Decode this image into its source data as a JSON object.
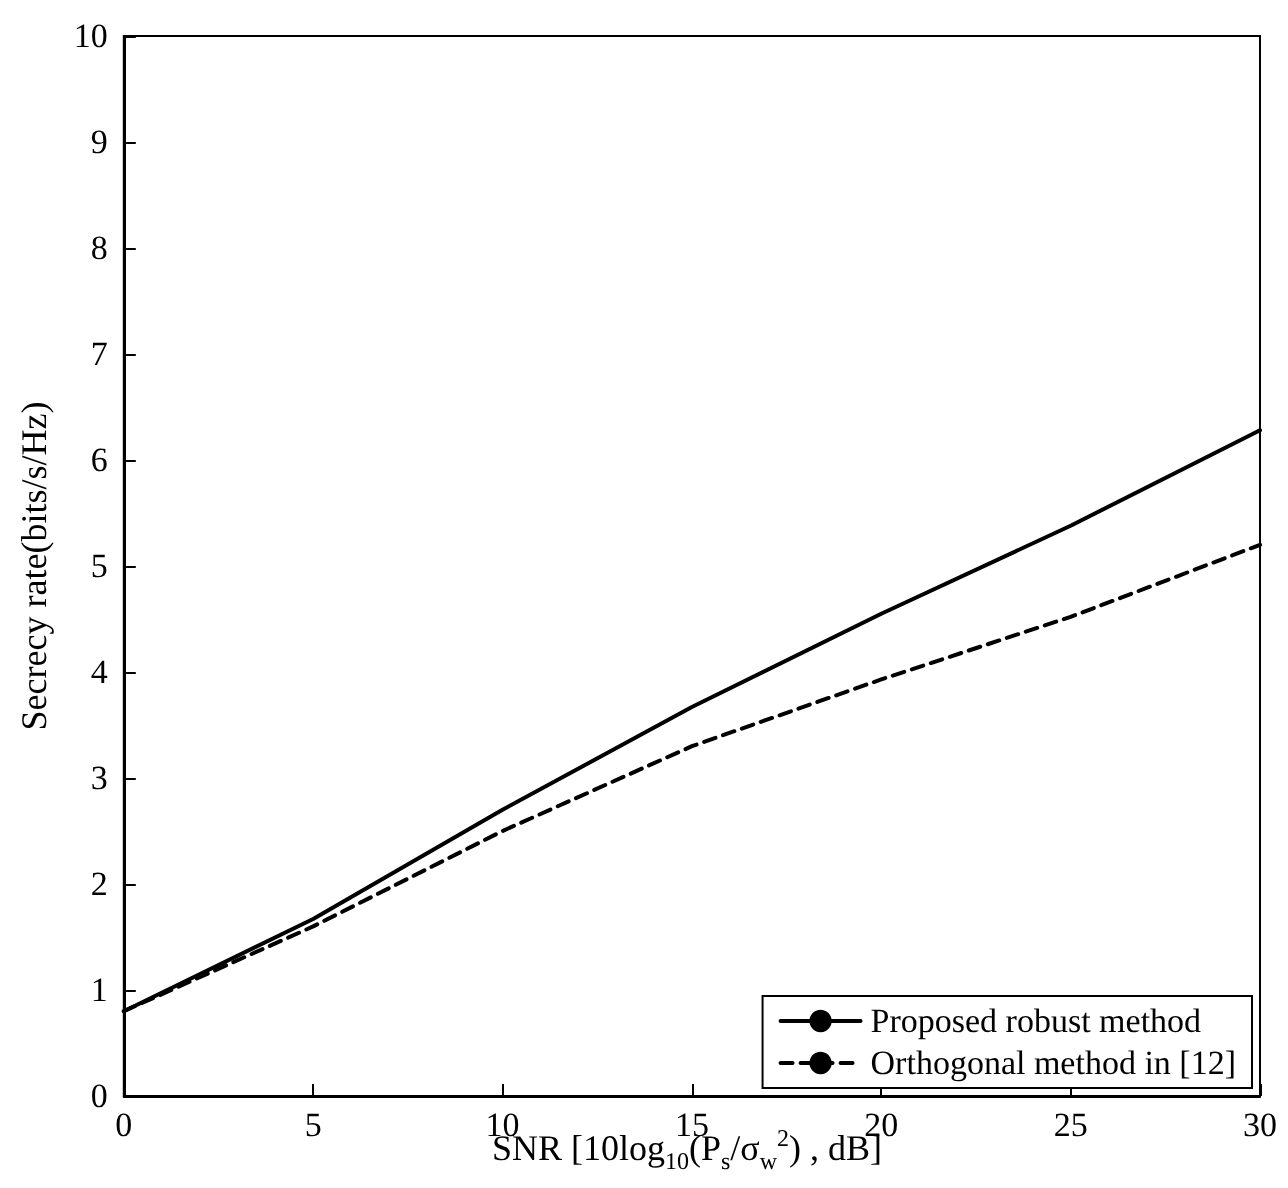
{
  "chart_data": {
    "type": "line",
    "xlabel": "SNR [10log$_{10}$(P$_{s}$/σ$_{w}$$^{2}$) , dB]",
    "ylabel": "Secrecy rate(bits/s/Hz)",
    "x": [
      0,
      5,
      10,
      15,
      20,
      25,
      30
    ],
    "series": [
      {
        "name": "Proposed robust method",
        "color": "#000000",
        "line_style": "solid",
        "values": [
          0.8,
          1.67,
          2.7,
          3.67,
          4.55,
          5.38,
          6.28
        ]
      },
      {
        "name": "Orthogonal method in [12]",
        "color": "#000000",
        "line_style": "dashed",
        "values": [
          0.8,
          1.6,
          2.5,
          3.3,
          3.93,
          4.52,
          5.2
        ]
      }
    ],
    "xlim": [
      0,
      30
    ],
    "xticks": [
      0,
      5,
      10,
      15,
      20,
      25,
      30
    ],
    "ylim": [
      0,
      10
    ],
    "yticks": [
      0,
      1,
      2,
      3,
      4,
      5,
      6,
      7,
      8,
      9,
      10
    ],
    "grid": false,
    "legend": "bottom right",
    "marker": "none"
  }
}
